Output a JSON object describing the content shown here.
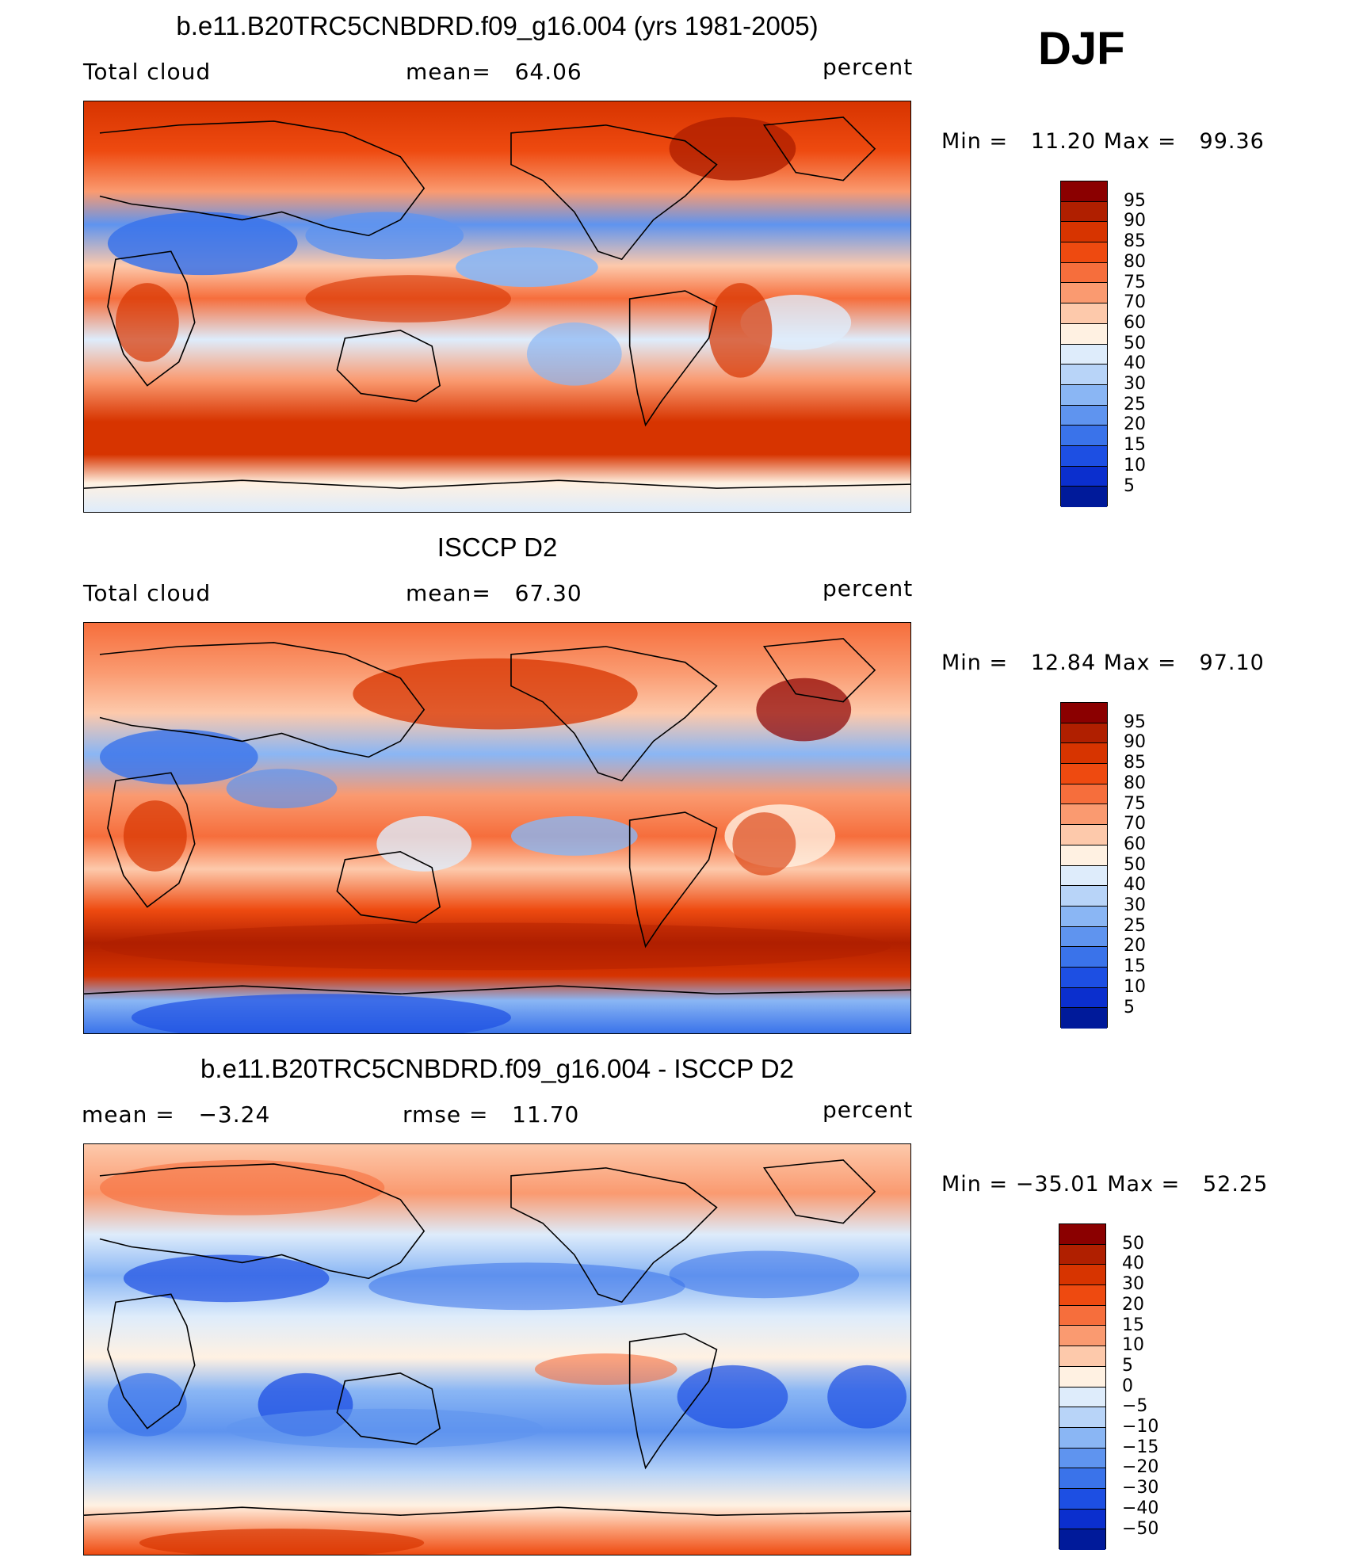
{
  "season": "DJF",
  "panels": [
    {
      "title": "b.e11.B20TRC5CNBDRD.f09_g16.004 (yrs 1981-2005)",
      "left": "Total cloud",
      "center": "mean=   64.06",
      "right": "percent",
      "minmax": "Min =   11.20 Max =   99.36",
      "colorbar_labels": [
        "95",
        "90",
        "85",
        "80",
        "75",
        "70",
        "60",
        "50",
        "40",
        "30",
        "25",
        "20",
        "15",
        "10",
        "5"
      ],
      "colors": [
        "#8b0000",
        "#b01f00",
        "#d73400",
        "#ee4a10",
        "#f66e3c",
        "#fa9a70",
        "#fdc9ab",
        "#fff1e2",
        "#deecfb",
        "#b8d4f8",
        "#8ab6f4",
        "#5f94ef",
        "#3a73ea",
        "#1d4fe3",
        "#0b2fce",
        "#001a9a"
      ]
    },
    {
      "title": "ISCCP D2",
      "left": "Total cloud",
      "center": "mean=   67.30",
      "right": "percent",
      "minmax": "Min =   12.84 Max =   97.10",
      "colorbar_labels": [
        "95",
        "90",
        "85",
        "80",
        "75",
        "70",
        "60",
        "50",
        "40",
        "30",
        "25",
        "20",
        "15",
        "10",
        "5"
      ],
      "colors": [
        "#8b0000",
        "#b01f00",
        "#d73400",
        "#ee4a10",
        "#f66e3c",
        "#fa9a70",
        "#fdc9ab",
        "#fff1e2",
        "#deecfb",
        "#b8d4f8",
        "#8ab6f4",
        "#5f94ef",
        "#3a73ea",
        "#1d4fe3",
        "#0b2fce",
        "#001a9a"
      ]
    },
    {
      "title": "b.e11.B20TRC5CNBDRD.f09_g16.004 - ISCCP D2",
      "left": "mean =   −3.24",
      "center": "rmse =   11.70",
      "right": "percent",
      "minmax": "Min = −35.01 Max =   52.25",
      "colorbar_labels": [
        "50",
        "40",
        "30",
        "20",
        "15",
        "10",
        "5",
        "0",
        "−5",
        "−10",
        "−15",
        "−20",
        "−30",
        "−40",
        "−50"
      ],
      "colors": [
        "#8b0000",
        "#b01f00",
        "#d73400",
        "#ee4a10",
        "#f66e3c",
        "#fa9a70",
        "#fdc9ab",
        "#fff1e2",
        "#deecfb",
        "#b8d4f8",
        "#8ab6f4",
        "#5f94ef",
        "#3a73ea",
        "#1d4fe3",
        "#0b2fce",
        "#001a9a"
      ]
    }
  ]
}
